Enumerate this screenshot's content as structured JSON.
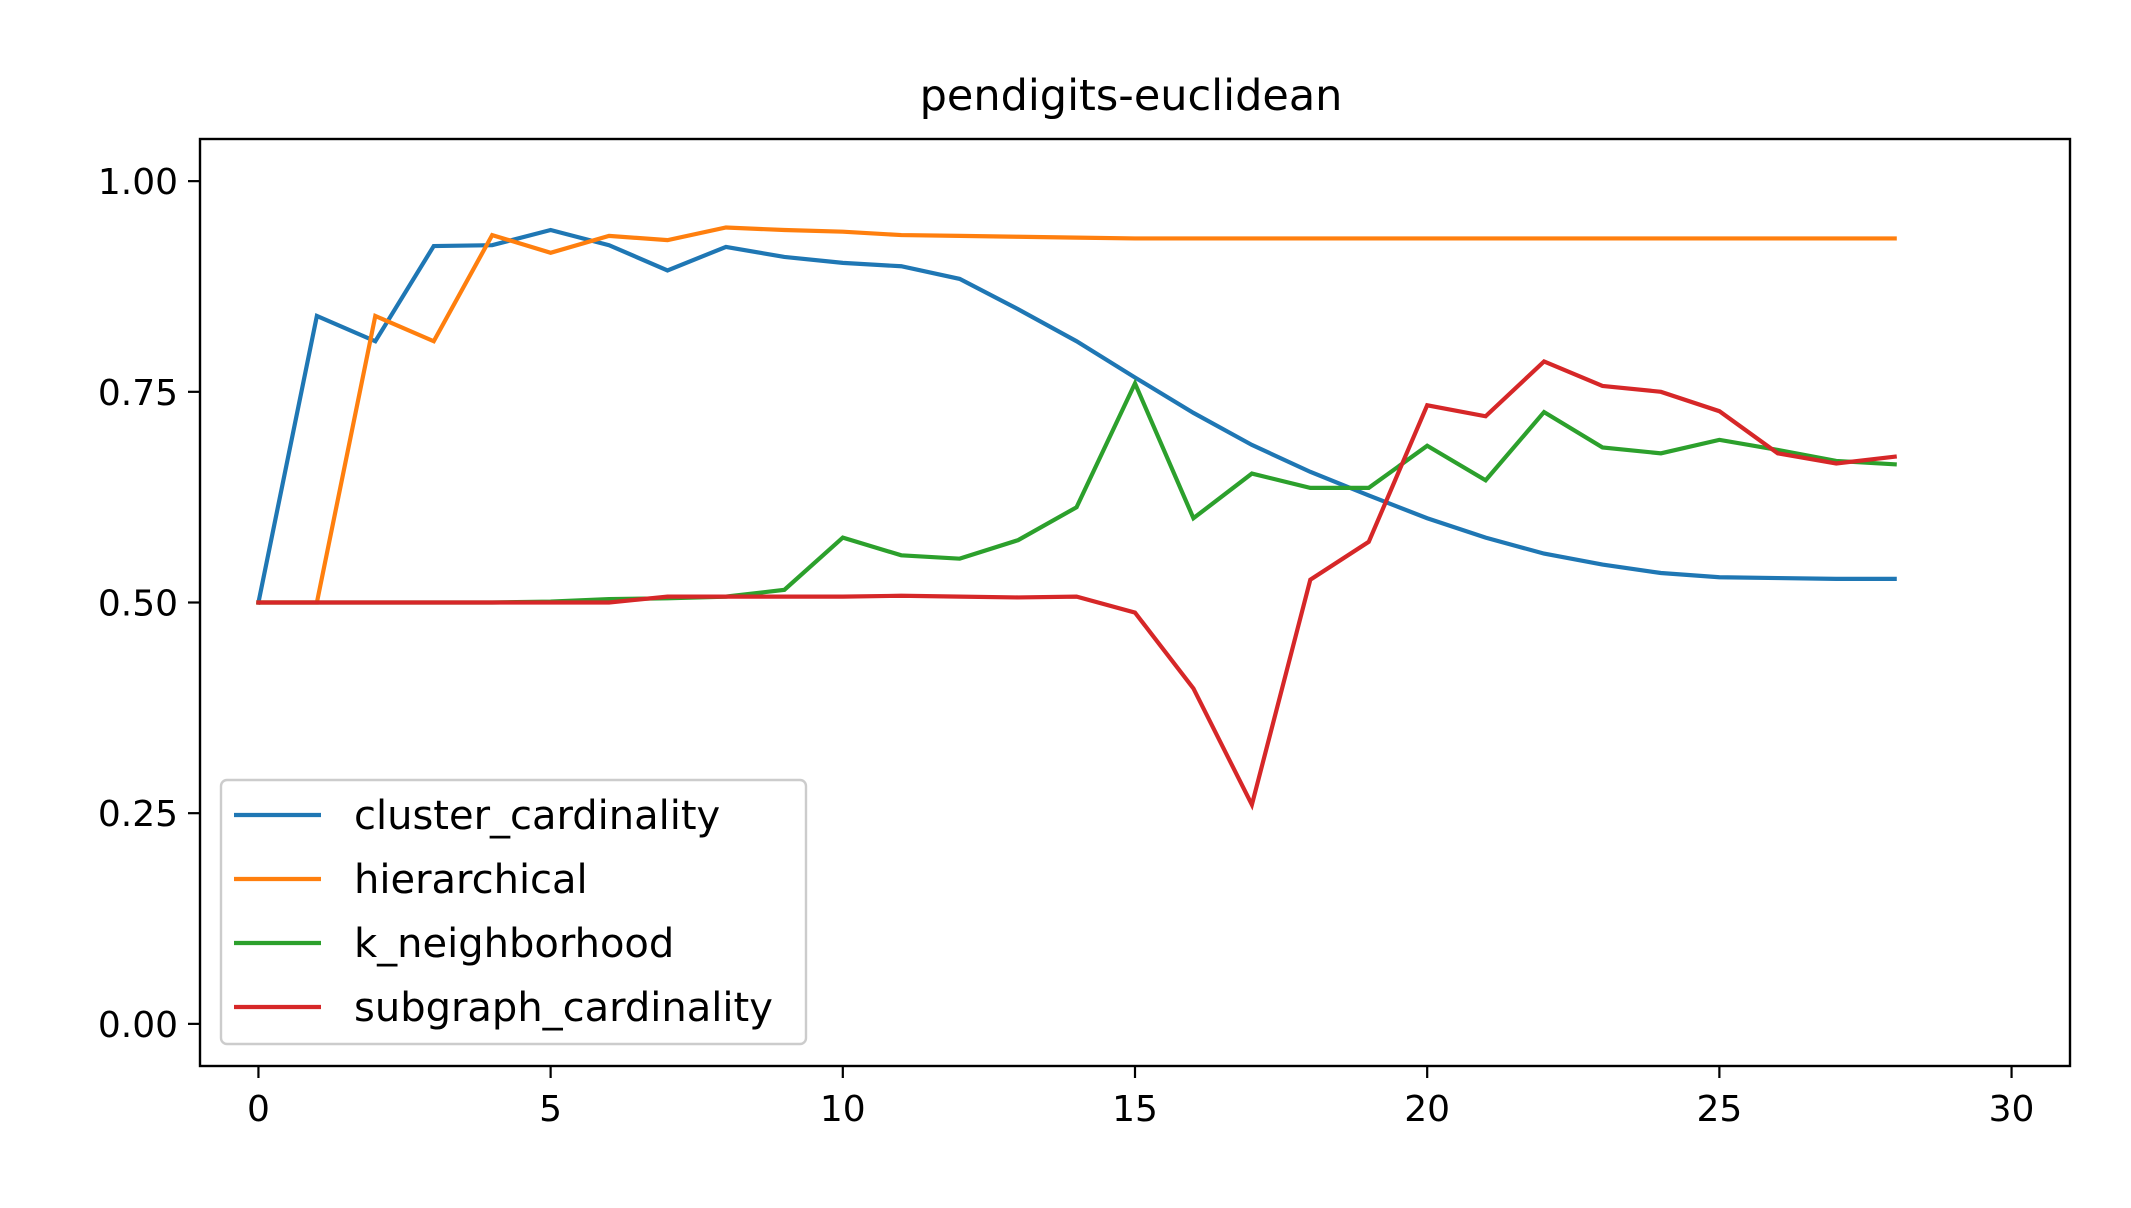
{
  "chart_data": {
    "type": "line",
    "title": "pendigits-euclidean",
    "xlabel": "",
    "ylabel": "",
    "xlim": [
      -1,
      31
    ],
    "ylim": [
      -0.05,
      1.05
    ],
    "xticks": [
      0,
      5,
      10,
      15,
      20,
      25,
      30
    ],
    "xtick_labels": [
      "0",
      "5",
      "10",
      "15",
      "20",
      "25",
      "30"
    ],
    "yticks": [
      0.0,
      0.25,
      0.5,
      0.75,
      1.0
    ],
    "ytick_labels": [
      "0.00",
      "0.25",
      "0.50",
      "0.75",
      "1.00"
    ],
    "grid": false,
    "legend_position": "lower-left",
    "x": [
      0,
      1,
      2,
      3,
      4,
      5,
      6,
      7,
      8,
      9,
      10,
      11,
      12,
      13,
      14,
      15,
      16,
      17,
      18,
      19,
      20,
      21,
      22,
      23,
      24,
      25,
      26,
      27,
      28
    ],
    "series": [
      {
        "name": "cluster_cardinality",
        "color": "#1f77b4",
        "values": [
          0.5,
          0.84,
          0.81,
          0.923,
          0.924,
          0.942,
          0.924,
          0.894,
          0.922,
          0.91,
          0.903,
          0.899,
          0.884,
          0.848,
          0.81,
          0.767,
          0.725,
          0.687,
          0.655,
          0.627,
          0.6,
          0.577,
          0.558,
          0.545,
          0.535,
          0.53,
          0.529,
          0.528,
          0.528
        ]
      },
      {
        "name": "hierarchical",
        "color": "#ff7f0e",
        "values": [
          0.5,
          0.5,
          0.84,
          0.81,
          0.936,
          0.915,
          0.935,
          0.93,
          0.945,
          0.942,
          0.94,
          0.936,
          0.935,
          0.934,
          0.933,
          0.932,
          0.932,
          0.932,
          0.932,
          0.932,
          0.932,
          0.932,
          0.932,
          0.932,
          0.932,
          0.932,
          0.932,
          0.932,
          0.932
        ]
      },
      {
        "name": "k_neighborhood",
        "color": "#2ca02c",
        "values": [
          0.5,
          0.5,
          0.5,
          0.5,
          0.5,
          0.501,
          0.504,
          0.505,
          0.507,
          0.515,
          0.577,
          0.556,
          0.552,
          0.574,
          0.613,
          0.76,
          0.6,
          0.653,
          0.636,
          0.636,
          0.686,
          0.645,
          0.726,
          0.684,
          0.677,
          0.693,
          0.681,
          0.668,
          0.664
        ]
      },
      {
        "name": "subgraph_cardinality",
        "color": "#d62728",
        "values": [
          0.5,
          0.5,
          0.5,
          0.5,
          0.5,
          0.5,
          0.5,
          0.507,
          0.507,
          0.507,
          0.507,
          0.508,
          0.507,
          0.506,
          0.507,
          0.488,
          0.398,
          0.26,
          0.527,
          0.572,
          0.734,
          0.721,
          0.786,
          0.757,
          0.75,
          0.727,
          0.677,
          0.665,
          0.673
        ]
      }
    ]
  }
}
